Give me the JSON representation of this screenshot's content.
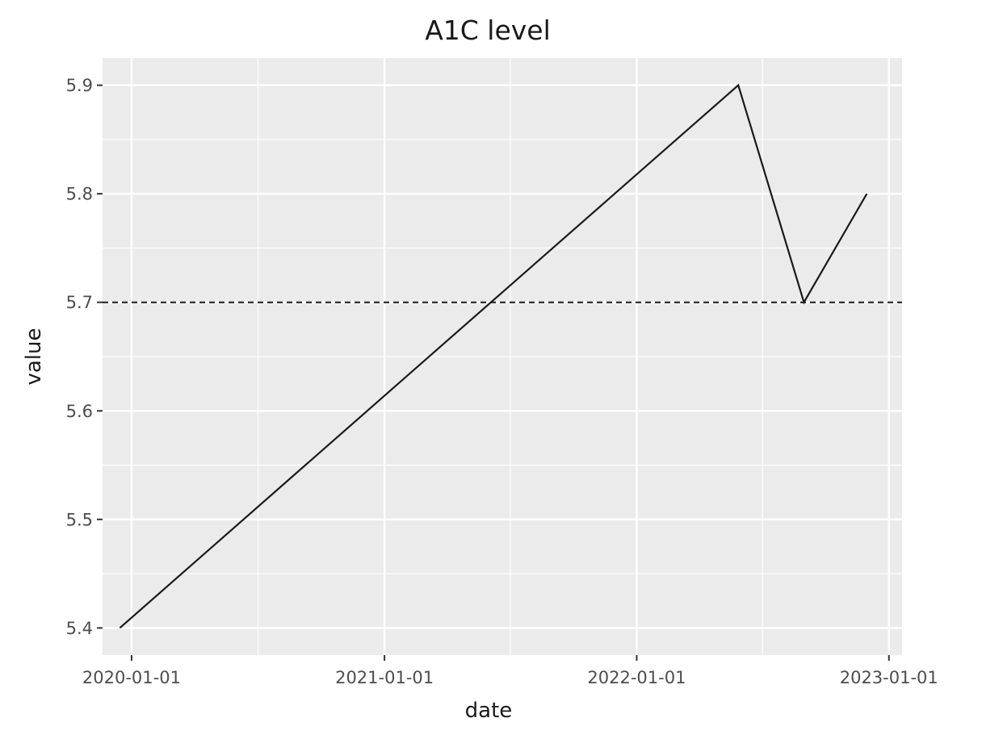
{
  "chart_data": {
    "type": "line",
    "title": "A1C level",
    "xlabel": "date",
    "ylabel": "value",
    "x_axis_kind": "date",
    "xlim": [
      "2019-11-20",
      "2023-01-20"
    ],
    "ylim": [
      5.375,
      5.925
    ],
    "x_ticks": [
      "2020-01-01",
      "2021-01-01",
      "2022-01-01",
      "2023-01-01"
    ],
    "x_minor_ticks": [
      "2020-07-02",
      "2021-07-02",
      "2022-07-02"
    ],
    "y_ticks": [
      5.4,
      5.5,
      5.6,
      5.7,
      5.8,
      5.9
    ],
    "y_tick_labels": [
      "5.4",
      "5.5",
      "5.6",
      "5.7",
      "5.8",
      "5.9"
    ],
    "y_minor_ticks": [
      5.45,
      5.55,
      5.65,
      5.75,
      5.85
    ],
    "series": [
      {
        "x": [
          "2019-12-15",
          "2022-05-28",
          "2022-08-31",
          "2022-11-30"
        ],
        "y": [
          5.4,
          5.9,
          5.7,
          5.8
        ],
        "color": "#1a1a1a"
      }
    ],
    "reference_lines": [
      {
        "orientation": "horizontal",
        "y": 5.7,
        "style": "dashed",
        "color": "#1a1a1a"
      }
    ],
    "grid": true,
    "panel_background": "#ebebeb",
    "grid_color": "#ffffff"
  }
}
